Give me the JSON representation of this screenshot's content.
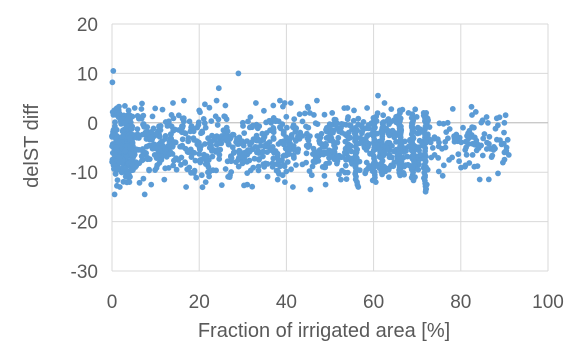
{
  "chart_data": {
    "type": "scatter",
    "xlabel": "Fraction of irrigated area [%]",
    "ylabel": "delST diff",
    "xlim": [
      0,
      100
    ],
    "ylim": [
      -30,
      20
    ],
    "x_ticks": [
      0,
      20,
      40,
      60,
      80,
      100
    ],
    "y_ticks": [
      20,
      10,
      0,
      -10,
      -20,
      -30
    ],
    "x_tick_labels": [
      "0",
      "20",
      "40",
      "60",
      "80",
      "100"
    ],
    "y_tick_labels": [
      "20",
      "10",
      "0",
      "-10",
      "-20",
      "-30"
    ],
    "grid": true,
    "legend": "none",
    "marker_color": "#5B9BD5",
    "gridline_color": "#D9D9D9",
    "text_color": "#595959",
    "series": [
      {
        "values": [
          [
            0.3,
            10.5
          ],
          [
            0.1,
            8.2
          ],
          [
            29.0,
            10.0
          ],
          [
            24.5,
            7.0
          ],
          [
            0.5,
            2.5
          ],
          [
            1.2,
            3.0
          ],
          [
            3.8,
            2.5
          ],
          [
            5.2,
            3.0
          ],
          [
            14.0,
            4.0
          ],
          [
            16.5,
            4.5
          ],
          [
            20.0,
            2.5
          ],
          [
            24.0,
            4.5
          ],
          [
            26.0,
            3.5
          ],
          [
            33.0,
            4.0
          ],
          [
            37.0,
            3.5
          ],
          [
            38.5,
            4.5
          ],
          [
            41.0,
            4.0
          ],
          [
            45.0,
            3.0
          ],
          [
            47.0,
            4.5
          ],
          [
            50.5,
            2.0
          ],
          [
            54.0,
            3.0
          ],
          [
            55.5,
            2.5
          ],
          [
            58.5,
            3.0
          ],
          [
            61.0,
            5.5
          ],
          [
            62.5,
            4.0
          ],
          [
            66.0,
            2.5
          ],
          [
            68.0,
            2.0
          ],
          [
            71.5,
            2.0
          ],
          [
            72.5,
            0.5
          ],
          [
            77.0,
            0.0
          ],
          [
            85.0,
            0.5
          ],
          [
            90.0,
            0.0
          ],
          [
            88.5,
            -0.5
          ],
          [
            83.0,
            -1.0
          ],
          [
            80.5,
            -1.0
          ],
          [
            79.0,
            -3.0
          ],
          [
            81.0,
            -5.5
          ],
          [
            84.0,
            -5.0
          ],
          [
            86.0,
            -4.0
          ],
          [
            87.5,
            -5.5
          ],
          [
            89.0,
            -3.5
          ],
          [
            90.5,
            -5.0
          ],
          [
            91.0,
            -6.5
          ],
          [
            90.0,
            -6.0
          ],
          [
            78.0,
            -7.0
          ],
          [
            75.0,
            -4.0
          ],
          [
            74.0,
            -6.5
          ],
          [
            76.5,
            -5.0
          ],
          [
            0.6,
            -14.5
          ],
          [
            1.8,
            -13.0
          ],
          [
            4.0,
            -12.0
          ],
          [
            7.5,
            -14.5
          ],
          [
            9.0,
            -12.5
          ],
          [
            12.0,
            -11.5
          ],
          [
            17.0,
            -13.0
          ],
          [
            21.5,
            -12.0
          ],
          [
            27.0,
            -11.0
          ],
          [
            31.0,
            -12.5
          ],
          [
            38.0,
            -11.5
          ],
          [
            41.5,
            -13.0
          ],
          [
            45.5,
            -13.5
          ],
          [
            49.0,
            -12.5
          ],
          [
            52.5,
            -11.5
          ],
          [
            56.5,
            -13.0
          ],
          [
            60.5,
            -12.0
          ],
          [
            63.5,
            -11.0
          ],
          [
            67.0,
            -10.5
          ],
          [
            69.5,
            -11.0
          ],
          [
            72.0,
            -13.5
          ],
          [
            72.2,
            -12.5
          ],
          [
            71.8,
            -11.0
          ],
          [
            72.4,
            -9.5
          ]
        ]
      }
    ]
  }
}
